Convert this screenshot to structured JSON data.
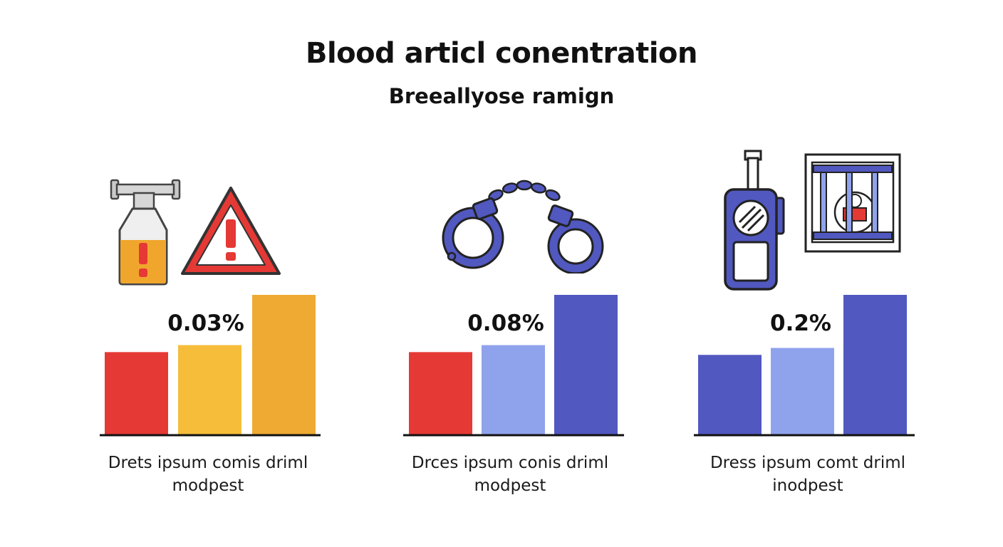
{
  "title": "Blood articl conentration",
  "subtitle": "Breeallyose ramign",
  "colors": {
    "red": "#e53935",
    "yellow": "#f5bd3a",
    "orange": "#eeaa32",
    "light_blue": "#8fa3ec",
    "indigo": "#5158bf",
    "axis": "#111111"
  },
  "panels": [
    {
      "icons": [
        "bottle-warning-icon",
        "warning-triangle-icon"
      ],
      "label": "0.03%",
      "caption": [
        "Drets ipsum comis driml",
        "modpest"
      ]
    },
    {
      "icons": [
        "handcuffs-icon"
      ],
      "label": "0.08%",
      "caption": [
        "Drces ipsum conis driml",
        "modpest"
      ]
    },
    {
      "icons": [
        "walkie-talkie-icon",
        "jail-icon"
      ],
      "label": "0.2%",
      "caption": [
        "Dress ipsum comt driml",
        "inodpest"
      ]
    }
  ],
  "chart_data": [
    {
      "type": "bar",
      "categories": [
        "",
        "",
        ""
      ],
      "values": [
        0.59,
        0.64,
        1.0
      ],
      "colors": [
        "#e53935",
        "#f5bd3a",
        "#eeaa32"
      ],
      "annotation": "0.03%",
      "title": "",
      "xlabel": "",
      "ylabel": ""
    },
    {
      "type": "bar",
      "categories": [
        "",
        "",
        ""
      ],
      "values": [
        0.59,
        0.64,
        1.0
      ],
      "colors": [
        "#e53935",
        "#8fa3ec",
        "#5158bf"
      ],
      "annotation": "0.08%",
      "title": "",
      "xlabel": "",
      "ylabel": ""
    },
    {
      "type": "bar",
      "categories": [
        "",
        "",
        ""
      ],
      "values": [
        0.57,
        0.62,
        1.0
      ],
      "colors": [
        "#5158bf",
        "#8fa3ec",
        "#5158bf"
      ],
      "annotation": "0.2%",
      "title": "",
      "xlabel": "",
      "ylabel": ""
    }
  ]
}
